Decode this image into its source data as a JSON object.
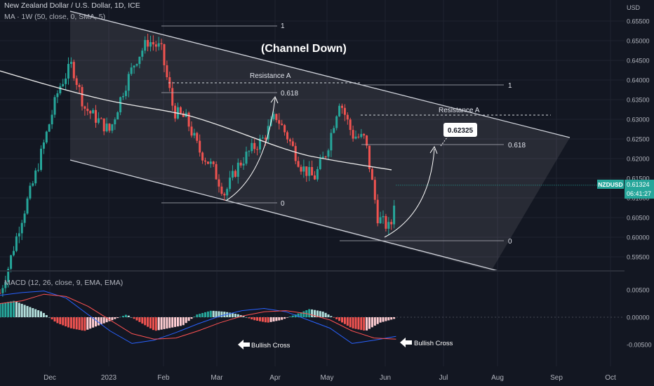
{
  "header": {
    "symbol_line": "New Zealand Dollar / U.S. Dollar, 1D, ICE",
    "ma_line": "MA · 1W (50, close, 0, SMA, 5)",
    "macd_line": "MACD (12, 26, close, 9, EMA, EMA)",
    "currency": "USD"
  },
  "price_badge": {
    "ticker": "NZDUSD",
    "price": "0.61324",
    "countdown": "06:41:27"
  },
  "annotations": {
    "channel_title": "(Channel Down)",
    "resistance_left": "Resistance A",
    "resistance_right": "Resistance A",
    "target_box": "0.62325",
    "fib_left_1": "1",
    "fib_left_0618": "0.618",
    "fib_left_0": "0",
    "fib_right_1": "1",
    "fib_right_0618": "0.618",
    "fib_right_0": "0",
    "bullish_cross_1": "Bullish Cross",
    "bullish_cross_2": "Bullish Cross"
  },
  "colors": {
    "background": "#131722",
    "up": "#26a69a",
    "down": "#ef5350",
    "ma_line": "#e8e8e8",
    "macd_line": "#2962ff",
    "signal_line": "#ff5252",
    "badge": "#26a69a",
    "grid": "#1f2330"
  },
  "chart_data": [
    {
      "type": "candlestick",
      "title": "New Zealand Dollar / U.S. Dollar, 1D, ICE",
      "ylabel": "USD",
      "ylim": [
        0.5925,
        0.6555
      ],
      "y_ticks": [
        "0.65500",
        "0.65000",
        "0.64500",
        "0.64000",
        "0.63500",
        "0.63000",
        "0.62500",
        "0.62000",
        "0.61500",
        "0.61000",
        "0.60500",
        "0.60000",
        "0.59500"
      ],
      "x_ticks": [
        "Dec",
        "2023",
        "Feb",
        "Mar",
        "Apr",
        "May",
        "Jun",
        "Jul",
        "Aug",
        "Sep",
        "Oct"
      ],
      "close_path": [
        [
          "2022-11-01",
          0.582
        ],
        [
          "2022-11-08",
          0.592
        ],
        [
          "2022-11-15",
          0.604
        ],
        [
          "2022-11-22",
          0.614
        ],
        [
          "2022-11-29",
          0.626
        ],
        [
          "2022-12-06",
          0.638
        ],
        [
          "2022-12-13",
          0.644
        ],
        [
          "2022-12-20",
          0.633
        ],
        [
          "2022-12-27",
          0.63
        ],
        [
          "2023-01-03",
          0.627
        ],
        [
          "2023-01-10",
          0.637
        ],
        [
          "2023-01-17",
          0.645
        ],
        [
          "2023-01-24",
          0.65
        ],
        [
          "2023-01-31",
          0.648
        ],
        [
          "2023-02-07",
          0.632
        ],
        [
          "2023-02-14",
          0.63
        ],
        [
          "2023-02-21",
          0.622
        ],
        [
          "2023-02-28",
          0.618
        ],
        [
          "2023-03-07",
          0.611
        ],
        [
          "2023-03-14",
          0.618
        ],
        [
          "2023-03-21",
          0.622
        ],
        [
          "2023-03-28",
          0.625
        ],
        [
          "2023-04-04",
          0.631
        ],
        [
          "2023-04-11",
          0.625
        ],
        [
          "2023-04-18",
          0.618
        ],
        [
          "2023-04-25",
          0.615
        ],
        [
          "2023-05-02",
          0.622
        ],
        [
          "2023-05-09",
          0.635
        ],
        [
          "2023-05-16",
          0.626
        ],
        [
          "2023-05-23",
          0.625
        ],
        [
          "2023-05-30",
          0.605
        ],
        [
          "2023-06-06",
          0.602
        ],
        [
          "2023-06-09",
          0.6132
        ]
      ],
      "ma_weekly_50": [
        [
          "2022-10-13",
          0.646
        ],
        [
          "2022-11-15",
          0.641
        ],
        [
          "2022-12-15",
          0.6365
        ],
        [
          "2023-01-15",
          0.634
        ],
        [
          "2023-02-15",
          0.632
        ],
        [
          "2023-03-15",
          0.627
        ],
        [
          "2023-04-15",
          0.622
        ],
        [
          "2023-05-15",
          0.6195
        ],
        [
          "2023-06-10",
          0.617
        ]
      ],
      "last_price": 0.61324,
      "series": [
        {
          "name": "Resistance A",
          "values": [
            0.639
          ]
        },
        {
          "name": "Resistance A",
          "values": [
            0.6305
          ]
        }
      ],
      "fibonacci": [
        {
          "levels": {
            "1": 0.654,
            "0.618": 0.6365,
            "0": 0.609
          }
        },
        {
          "levels": {
            "1": 0.639,
            "0.618": 0.6232,
            "0": 0.599
          }
        }
      ],
      "target": 0.62325
    },
    {
      "type": "histogram",
      "title": "MACD (12, 26, close, 9, EMA, EMA)",
      "ylim": [
        -0.0065,
        0.0065
      ],
      "y_ticks": [
        "0.00500",
        "0.00000",
        "-0.00500"
      ],
      "histogram": [
        0.0025,
        0.003,
        0.002,
        0.001,
        -0.001,
        -0.002,
        -0.0025,
        -0.0015,
        -0.0005,
        0.0005,
        -0.001,
        -0.0025,
        -0.002,
        -0.0015,
        0.0005,
        0.0012,
        0.001,
        0.0005,
        -0.0005,
        -0.001,
        -0.0005,
        0.0005,
        0.0015,
        0.001,
        -0.0005,
        -0.002,
        -0.0025,
        -0.001,
        -0.0003
      ],
      "macd": [
        0.004,
        0.0045,
        0.0048,
        0.0035,
        0.0005,
        -0.0025,
        -0.0048,
        -0.0042,
        -0.0028,
        -0.0012,
        0.0002,
        0.0012,
        0.0016,
        0.001,
        -0.0005,
        -0.002,
        -0.0048,
        -0.0042,
        -0.0035
      ],
      "signal": [
        0.0025,
        0.003,
        0.0042,
        0.0038,
        0.002,
        -0.0005,
        -0.003,
        -0.004,
        -0.0038,
        -0.0025,
        -0.001,
        0.0002,
        0.001,
        0.0012,
        0.0006,
        -0.0005,
        -0.0025,
        -0.0038,
        -0.004
      ]
    }
  ]
}
